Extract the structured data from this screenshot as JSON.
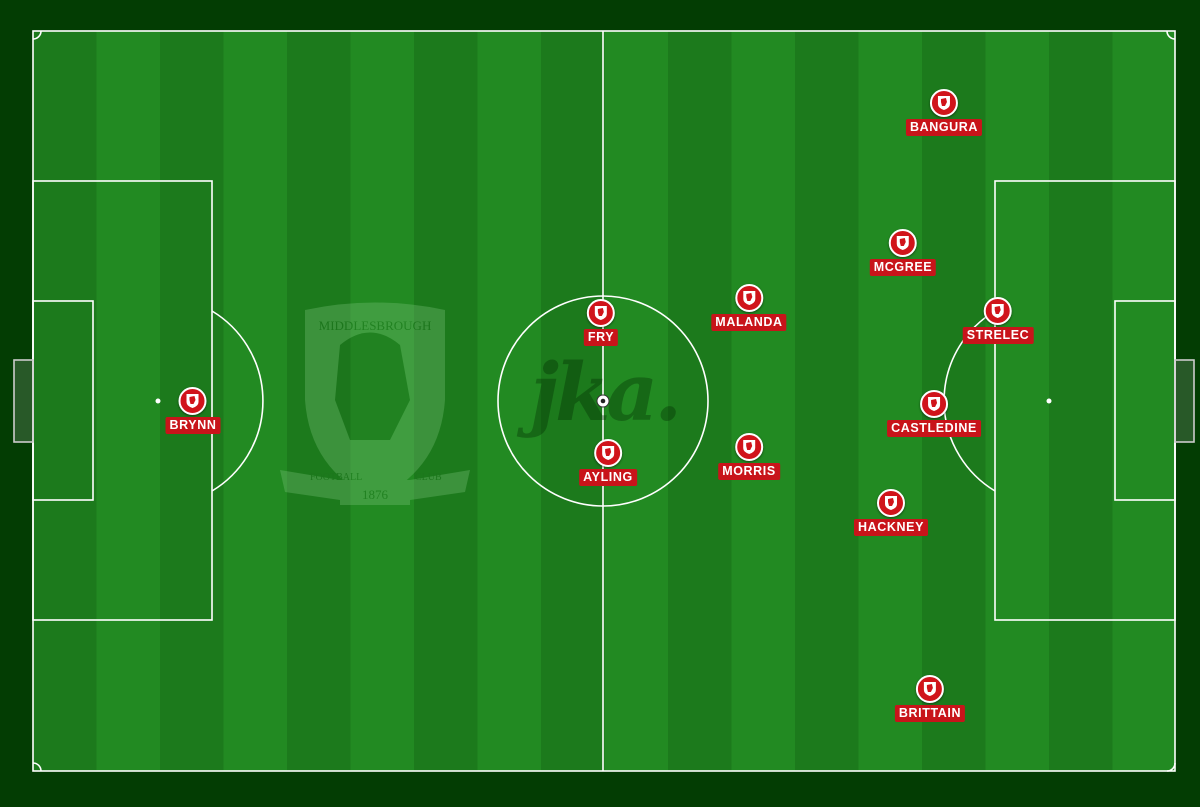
{
  "colors": {
    "pitch_dark": "#1c7a1c",
    "pitch_light": "#228a22",
    "line": "#ffffff",
    "border": "#033d03",
    "player_badge": "#d0141b",
    "label_bg": "#c8141a"
  },
  "crest": {
    "top_text": "MIDDLESBROUGH",
    "left_ribbon": "FOOTBALL",
    "right_ribbon": "CLUB",
    "year": "1876"
  },
  "watermark": "jka.",
  "ball_icon": "football-icon",
  "players": [
    {
      "name": "BANGURA",
      "icon": "middlesbrough-crest-icon"
    },
    {
      "name": "MCGREE",
      "icon": "middlesbrough-crest-icon"
    },
    {
      "name": "MALANDA",
      "icon": "middlesbrough-crest-icon"
    },
    {
      "name": "STRELEC",
      "icon": "middlesbrough-crest-icon"
    },
    {
      "name": "FRY",
      "icon": "middlesbrough-crest-icon"
    },
    {
      "name": "BRYNN",
      "icon": "middlesbrough-crest-icon"
    },
    {
      "name": "CASTLEDINE",
      "icon": "middlesbrough-crest-icon"
    },
    {
      "name": "MORRIS",
      "icon": "middlesbrough-crest-icon"
    },
    {
      "name": "AYLING",
      "icon": "middlesbrough-crest-icon"
    },
    {
      "name": "HACKNEY",
      "icon": "middlesbrough-crest-icon"
    },
    {
      "name": "BRITTAIN",
      "icon": "middlesbrough-crest-icon"
    }
  ]
}
